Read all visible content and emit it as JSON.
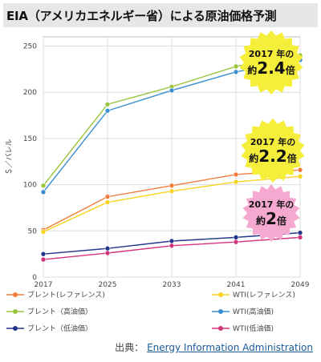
{
  "title": "EIA（アメリカエネルギー省）による原油価格予測",
  "source": {
    "label": "出典：",
    "link_text": "Energy Information Administration"
  },
  "badges": [
    {
      "line1": "2017 年の",
      "prefix": "約",
      "value": "2.4",
      "suffix": "倍",
      "color": "#f5ee3a"
    },
    {
      "line1": "2017 年の",
      "prefix": "約",
      "value": "2.2",
      "suffix": "倍",
      "color": "#f5ee3a"
    },
    {
      "line1": "2017 年の",
      "prefix": "約",
      "value": "2",
      "suffix": "倍",
      "color": "#f5a9d0"
    }
  ],
  "chart_data": {
    "type": "line",
    "ylabel": "＄／バレル",
    "x": [
      2017,
      2025,
      2033,
      2041,
      2049
    ],
    "ylim": [
      0,
      260
    ],
    "yticks": [
      0,
      50,
      100,
      150,
      200,
      250
    ],
    "grid": true,
    "legend_position": "bottom",
    "series": [
      {
        "name": "ブレント(レファレンス)",
        "color": "#f07c3a",
        "values": [
          51,
          87,
          99,
          111,
          116
        ]
      },
      {
        "name": "WTI(レファレンス)",
        "color": "#f7d21e",
        "values": [
          49,
          81,
          93,
          103,
          109
        ]
      },
      {
        "name": "ブレント（高油価）",
        "color": "#9ac43c",
        "values": [
          99,
          187,
          206,
          228,
          240
        ]
      },
      {
        "name": "WTI(高油価)",
        "color": "#3a8fd0",
        "values": [
          92,
          180,
          202,
          222,
          235
        ]
      },
      {
        "name": "ブレント（低油価）",
        "color": "#23358a",
        "values": [
          25,
          31,
          39,
          43,
          48
        ]
      },
      {
        "name": "WTI(低油価)",
        "color": "#d3337a",
        "values": [
          19,
          26,
          34,
          38,
          43
        ]
      }
    ]
  }
}
